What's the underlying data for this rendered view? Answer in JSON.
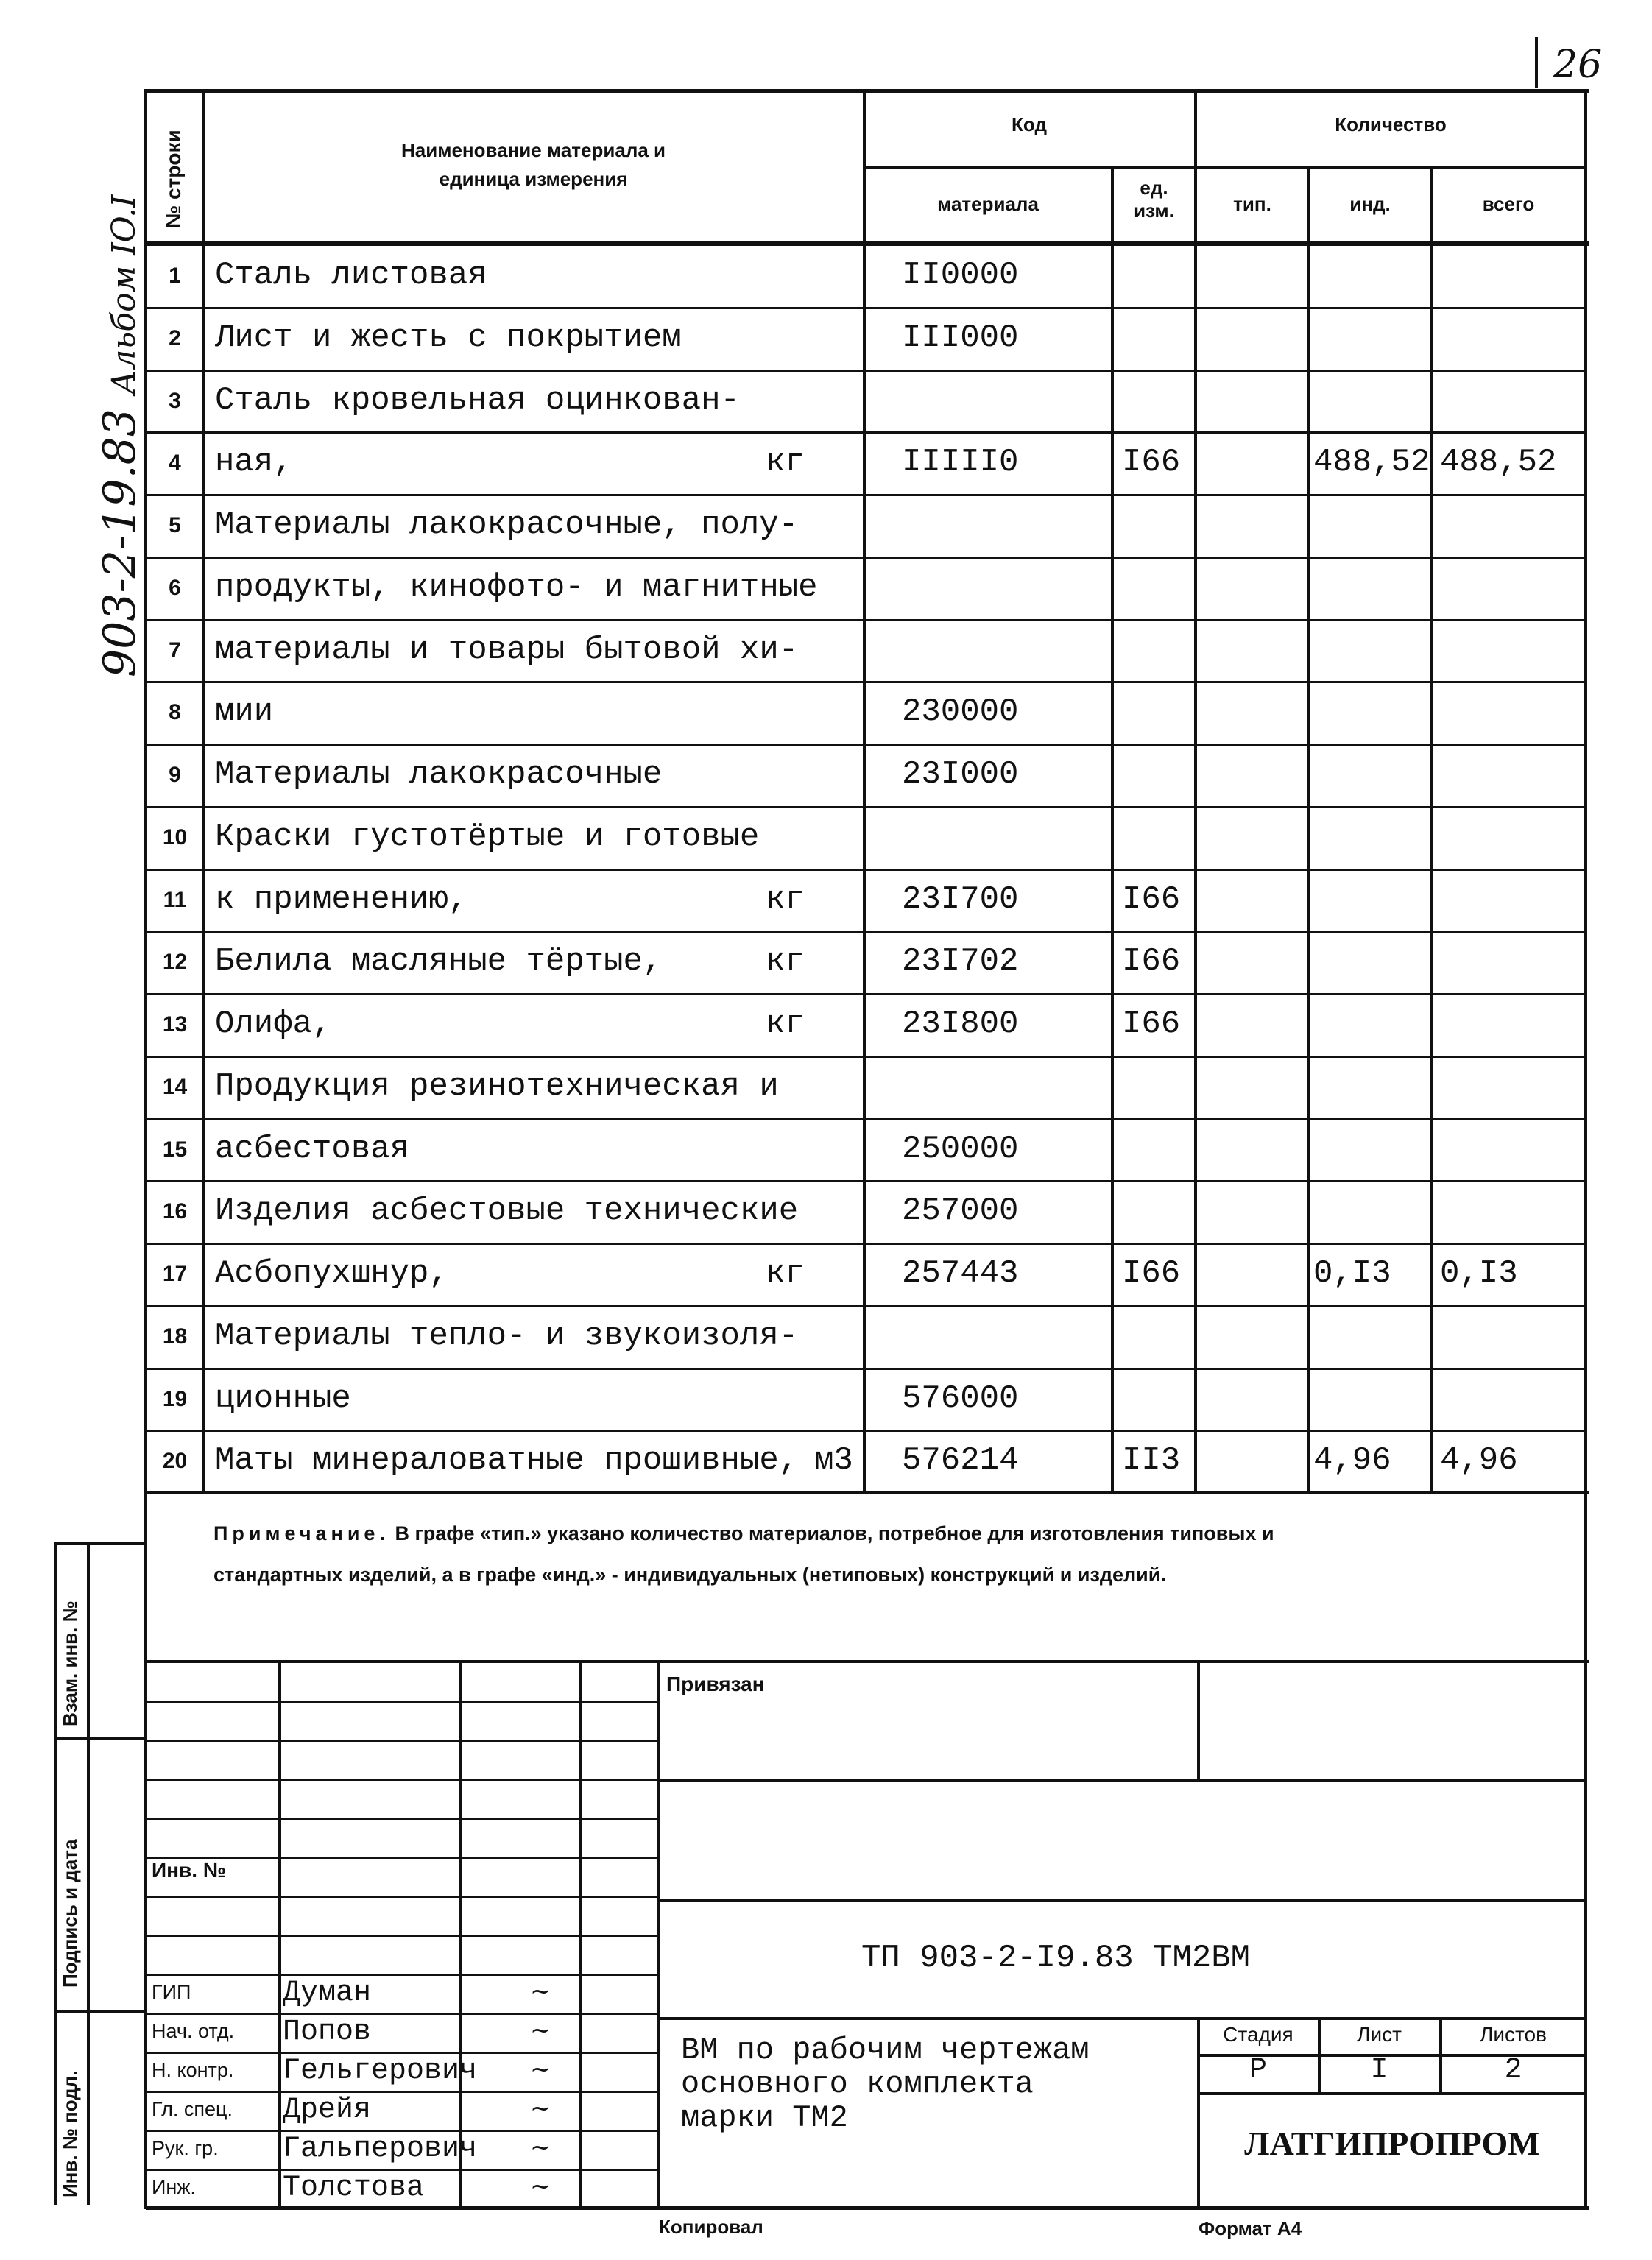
{
  "page_number": "26",
  "side_stamp": {
    "album_code": "903-2-19.83",
    "album_label": "Альбом IO.I"
  },
  "margin_labels": {
    "inv_podl": "Инв. № подл.",
    "signature_date": "Подпись и дата",
    "vzam_inv": "Взам. инв. №"
  },
  "header": {
    "row_no": "№ строки",
    "name": "Наименование материала и единица измерения",
    "code": "Код",
    "code_material": "материала",
    "code_unit": "ед. изм.",
    "quantity": "Количество",
    "qty_typ": "тип.",
    "qty_ind": "инд.",
    "qty_total": "всего"
  },
  "rows": [
    {
      "n": "1",
      "name": "Сталь листовая",
      "unit": "",
      "code": "II0000",
      "ed": "",
      "typ": "",
      "ind": "",
      "total": ""
    },
    {
      "n": "2",
      "name": "Лист и жесть с покрытием",
      "unit": "",
      "code": "III000",
      "ed": "",
      "typ": "",
      "ind": "",
      "total": ""
    },
    {
      "n": "3",
      "name": "Сталь кровельная оцинкован-",
      "unit": "",
      "code": "",
      "ed": "",
      "typ": "",
      "ind": "",
      "total": ""
    },
    {
      "n": "4",
      "name": "ная,",
      "unit": "кг",
      "code": "IIIII0",
      "ed": "I66",
      "typ": "",
      "ind": "488,52",
      "total": "488,52"
    },
    {
      "n": "5",
      "name": "Материалы лакокрасочные, полу-",
      "unit": "",
      "code": "",
      "ed": "",
      "typ": "",
      "ind": "",
      "total": ""
    },
    {
      "n": "6",
      "name": "продукты, кинофото- и магнитные",
      "unit": "",
      "code": "",
      "ed": "",
      "typ": "",
      "ind": "",
      "total": ""
    },
    {
      "n": "7",
      "name": "материалы и товары бытовой хи-",
      "unit": "",
      "code": "",
      "ed": "",
      "typ": "",
      "ind": "",
      "total": ""
    },
    {
      "n": "8",
      "name": "мии",
      "unit": "",
      "code": "230000",
      "ed": "",
      "typ": "",
      "ind": "",
      "total": ""
    },
    {
      "n": "9",
      "name": "Материалы лакокрасочные",
      "unit": "",
      "code": "23I000",
      "ed": "",
      "typ": "",
      "ind": "",
      "total": ""
    },
    {
      "n": "10",
      "name": "Краски густотёртые и готовые",
      "unit": "",
      "code": "",
      "ed": "",
      "typ": "",
      "ind": "",
      "total": ""
    },
    {
      "n": "11",
      "name": "к применению,",
      "unit": "кг",
      "code": "23I700",
      "ed": "I66",
      "typ": "",
      "ind": "",
      "total": ""
    },
    {
      "n": "12",
      "name": "Белила масляные тёртые,",
      "unit": "кг",
      "code": "23I702",
      "ed": "I66",
      "typ": "",
      "ind": "",
      "total": ""
    },
    {
      "n": "13",
      "name": "Олифа,",
      "unit": "кг",
      "code": "23I800",
      "ed": "I66",
      "typ": "",
      "ind": "",
      "total": ""
    },
    {
      "n": "14",
      "name": "Продукция резинотехническая и",
      "unit": "",
      "code": "",
      "ed": "",
      "typ": "",
      "ind": "",
      "total": ""
    },
    {
      "n": "15",
      "name": "асбестовая",
      "unit": "",
      "code": "250000",
      "ed": "",
      "typ": "",
      "ind": "",
      "total": ""
    },
    {
      "n": "16",
      "name": "Изделия асбестовые технические",
      "unit": "",
      "code": "257000",
      "ed": "",
      "typ": "",
      "ind": "",
      "total": ""
    },
    {
      "n": "17",
      "name": "Асбопухшнур,",
      "unit": "кг",
      "code": "257443",
      "ed": "I66",
      "typ": "",
      "ind": "0,I3",
      "total": "0,I3"
    },
    {
      "n": "18",
      "name": "Материалы тепло- и звукоизоля-",
      "unit": "",
      "code": "",
      "ed": "",
      "typ": "",
      "ind": "",
      "total": ""
    },
    {
      "n": "19",
      "name": "ционные",
      "unit": "",
      "code": "576000",
      "ed": "",
      "typ": "",
      "ind": "",
      "total": ""
    },
    {
      "n": "20",
      "name": "Маты минераловатные прошивные,",
      "unit": "м3",
      "code": "576214",
      "ed": "II3",
      "typ": "",
      "ind": "4,96",
      "total": "4,96"
    }
  ],
  "note": {
    "label": "Примечание.",
    "text": "В графе «тип.» указано количество материалов, потребное для изготовления типовых и стандартных изделий, а в графе «инд.» - индивидуальных (нетиповых) конструкций и изделий."
  },
  "stamp": {
    "privyazan": "Привязан",
    "inv_no": "Инв. №",
    "doc_code": "ТП 903-2-I9.83  ТМ2ВМ",
    "signatories": [
      {
        "role": "ГИП",
        "name": "Думан"
      },
      {
        "role": "Нач. отд.",
        "name": "Попов"
      },
      {
        "role": "Н. контр.",
        "name": "Гельгерович"
      },
      {
        "role": "Гл. спец.",
        "name": "Дрейя"
      },
      {
        "role": "Рук. гр.",
        "name": "Гальперович"
      },
      {
        "role": "Инж.",
        "name": "Толстова"
      }
    ],
    "title": [
      "ВМ по рабочим чертежам",
      "основного комплекта",
      "марки ТМ2"
    ],
    "stage_label": "Стадия",
    "sheet_label": "Лист",
    "sheets_label": "Листов",
    "stage": "Р",
    "sheet": "I",
    "sheets": "2",
    "organization": "ЛАТГИПРОПРОМ"
  },
  "footer": {
    "copied": "Копировал",
    "format": "Формат А4"
  }
}
